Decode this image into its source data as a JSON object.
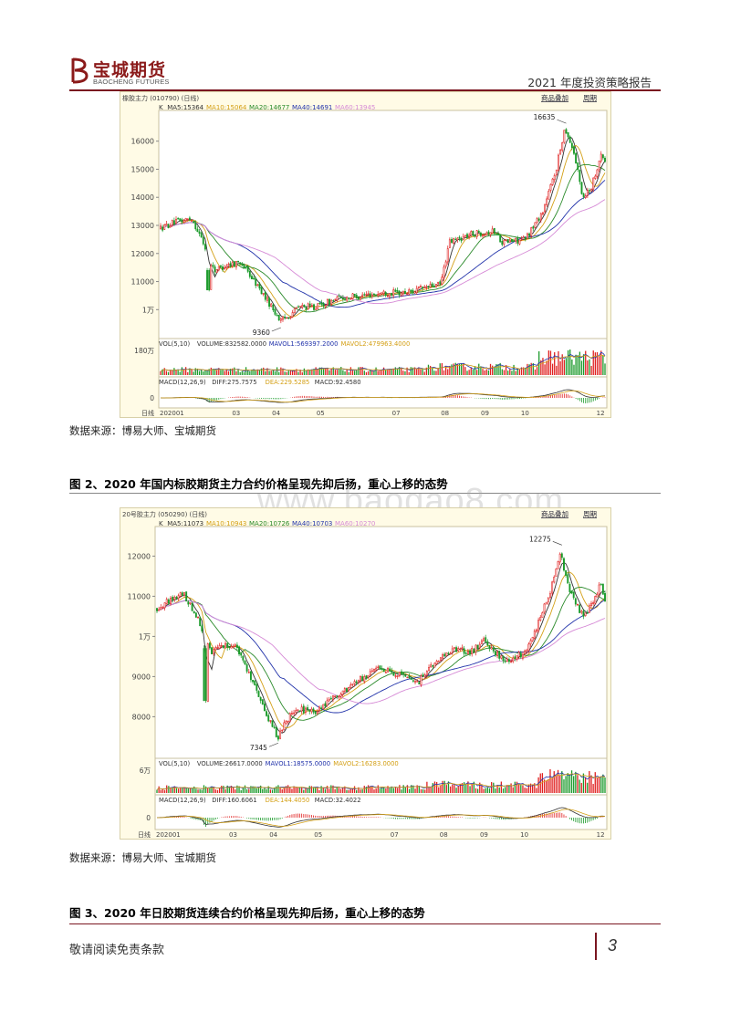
{
  "header": {
    "logo_cn": "宝城期货",
    "logo_en": "BAOCHENG FUTURES",
    "report_title": "2021 年度投资策略报告"
  },
  "watermark": "www.baogao8.com",
  "figure1": {
    "source": "数据来源：博易大师、宝城期货",
    "chart_data": {
      "type": "candlestick",
      "panel_title": "橡胶主力 (010790) (日线)",
      "buttons": [
        "商品叠加",
        "周期"
      ],
      "ma_legend": [
        {
          "label": "K",
          "color": "#333333"
        },
        {
          "label": "MA5:15364",
          "color": "#333333"
        },
        {
          "label": "MA10:15064",
          "color": "#d4a017"
        },
        {
          "label": "MA20:14677",
          "color": "#2a8a2a"
        },
        {
          "label": "MA40:14691",
          "color": "#2233aa"
        },
        {
          "label": "MA60:13945",
          "color": "#d68ad6"
        }
      ],
      "yticks": [
        "16000",
        "15000",
        "14000",
        "13000",
        "12000",
        "11000",
        "1万"
      ],
      "ytick_values": [
        16000,
        15000,
        14000,
        13000,
        12000,
        11000,
        10000
      ],
      "ylim": [
        9100,
        16900
      ],
      "annotations": [
        {
          "text": "16635",
          "value": 16635
        },
        {
          "text": "9360",
          "value": 9360
        }
      ],
      "vol_legend": [
        {
          "label": "VOL(5,10)",
          "color": "#333333"
        },
        {
          "label": "VOLUME:832582.0000",
          "color": "#333333"
        },
        {
          "label": "MAVOL1:569397.2000",
          "color": "#2233aa"
        },
        {
          "label": "MAVOL2:479963.4000",
          "color": "#d4a017"
        }
      ],
      "vol_ytick": "180万",
      "macd_legend": [
        {
          "label": "MACD(12,26,9)",
          "color": "#333333"
        },
        {
          "label": "DIFF:275.7575",
          "color": "#333333"
        },
        {
          "label": "DEA:229.5285",
          "color": "#d4a017"
        },
        {
          "label": "MACD:92.4580",
          "color": "#333333"
        }
      ],
      "macd_ytick": "0",
      "xaxis_label": "日线",
      "xticks": [
        "202001",
        "03",
        "04",
        "05",
        "07",
        "08",
        "09",
        "10",
        "12"
      ],
      "xtick_pos": [
        0,
        0.17,
        0.26,
        0.36,
        0.53,
        0.64,
        0.73,
        0.82,
        0.99
      ],
      "key_points": [
        [
          0,
          12900
        ],
        [
          0.03,
          13100
        ],
        [
          0.07,
          13250
        ],
        [
          0.09,
          12600
        ],
        [
          0.12,
          11400
        ],
        [
          0.15,
          11600
        ],
        [
          0.18,
          11700
        ],
        [
          0.22,
          10800
        ],
        [
          0.25,
          10100
        ],
        [
          0.27,
          9600
        ],
        [
          0.29,
          9800
        ],
        [
          0.31,
          10100
        ],
        [
          0.35,
          10100
        ],
        [
          0.4,
          10400
        ],
        [
          0.45,
          10500
        ],
        [
          0.5,
          10600
        ],
        [
          0.55,
          10600
        ],
        [
          0.6,
          10800
        ],
        [
          0.63,
          10900
        ],
        [
          0.65,
          12400
        ],
        [
          0.7,
          12700
        ],
        [
          0.75,
          12800
        ],
        [
          0.77,
          12400
        ],
        [
          0.82,
          12500
        ],
        [
          0.86,
          13500
        ],
        [
          0.89,
          15000
        ],
        [
          0.91,
          16500
        ],
        [
          0.93,
          15600
        ],
        [
          0.95,
          14000
        ],
        [
          0.97,
          14400
        ],
        [
          0.99,
          15500
        ],
        [
          1.0,
          15300
        ]
      ],
      "events": [
        {
          "x": 0.105,
          "open": 11400,
          "close": 10700
        }
      ]
    }
  },
  "figure2": {
    "caption": "图 2、2020 年国内标胶期货主力合约价格呈现先抑后扬，重心上移的态势",
    "source": "数据来源：博易大师、宝城期货",
    "chart_data": {
      "type": "candlestick",
      "panel_title": "20号胶主力 (050290) (日线)",
      "buttons": [
        "商品叠加",
        "周期"
      ],
      "ma_legend": [
        {
          "label": "K",
          "color": "#333333"
        },
        {
          "label": "MA5:11073",
          "color": "#333333"
        },
        {
          "label": "MA10:10943",
          "color": "#d4a017"
        },
        {
          "label": "MA20:10726",
          "color": "#2a8a2a"
        },
        {
          "label": "MA40:10703",
          "color": "#2233aa"
        },
        {
          "label": "MA60:10270",
          "color": "#d68ad6"
        }
      ],
      "yticks": [
        "12000",
        "11000",
        "1万",
        "9000",
        "8000"
      ],
      "ytick_values": [
        12000,
        11000,
        10000,
        9000,
        8000
      ],
      "ylim": [
        7100,
        12600
      ],
      "annotations": [
        {
          "text": "12275",
          "value": 12275
        },
        {
          "text": "7345",
          "value": 7345
        }
      ],
      "vol_legend": [
        {
          "label": "VOL(5,10)",
          "color": "#333333"
        },
        {
          "label": "VOLUME:26617.0000",
          "color": "#333333"
        },
        {
          "label": "MAVOL1:18575.0000",
          "color": "#2233aa"
        },
        {
          "label": "MAVOL2:16283.0000",
          "color": "#d4a017"
        }
      ],
      "vol_ytick": "6万",
      "macd_legend": [
        {
          "label": "MACD(12,26,9)",
          "color": "#333333"
        },
        {
          "label": "DIFF:160.6061",
          "color": "#333333"
        },
        {
          "label": "DEA:144.4050",
          "color": "#d4a017"
        },
        {
          "label": "MACD:32.4022",
          "color": "#333333"
        }
      ],
      "macd_ytick": "0",
      "xaxis_label": "日线",
      "xticks": [
        "202001",
        "03",
        "04",
        "05",
        "07",
        "08",
        "09",
        "10",
        "12"
      ],
      "xtick_pos": [
        0,
        0.17,
        0.26,
        0.36,
        0.53,
        0.64,
        0.73,
        0.82,
        0.99
      ],
      "key_points": [
        [
          0,
          10700
        ],
        [
          0.03,
          10900
        ],
        [
          0.06,
          11050
        ],
        [
          0.09,
          10500
        ],
        [
          0.12,
          9600
        ],
        [
          0.15,
          9800
        ],
        [
          0.18,
          9700
        ],
        [
          0.22,
          8700
        ],
        [
          0.25,
          7900
        ],
        [
          0.27,
          7500
        ],
        [
          0.29,
          7900
        ],
        [
          0.31,
          8200
        ],
        [
          0.35,
          8100
        ],
        [
          0.4,
          8500
        ],
        [
          0.45,
          8900
        ],
        [
          0.5,
          9200
        ],
        [
          0.55,
          9000
        ],
        [
          0.58,
          8800
        ],
        [
          0.6,
          9100
        ],
        [
          0.63,
          9400
        ],
        [
          0.66,
          9700
        ],
        [
          0.7,
          9600
        ],
        [
          0.73,
          9900
        ],
        [
          0.75,
          9600
        ],
        [
          0.78,
          9400
        ],
        [
          0.82,
          9600
        ],
        [
          0.85,
          10300
        ],
        [
          0.88,
          11200
        ],
        [
          0.9,
          12100
        ],
        [
          0.92,
          11200
        ],
        [
          0.95,
          10500
        ],
        [
          0.97,
          10800
        ],
        [
          0.99,
          11300
        ],
        [
          1.0,
          10900
        ]
      ],
      "events": [
        {
          "x": 0.105,
          "open": 9700,
          "close": 8400
        }
      ]
    }
  },
  "figure3": {
    "caption": "图 3、2020 年日胶期货连续合约价格呈现先抑后扬，重心上移的态势"
  },
  "footer": {
    "disclaimer": "敬请阅读免责条款",
    "page_number": "3"
  }
}
